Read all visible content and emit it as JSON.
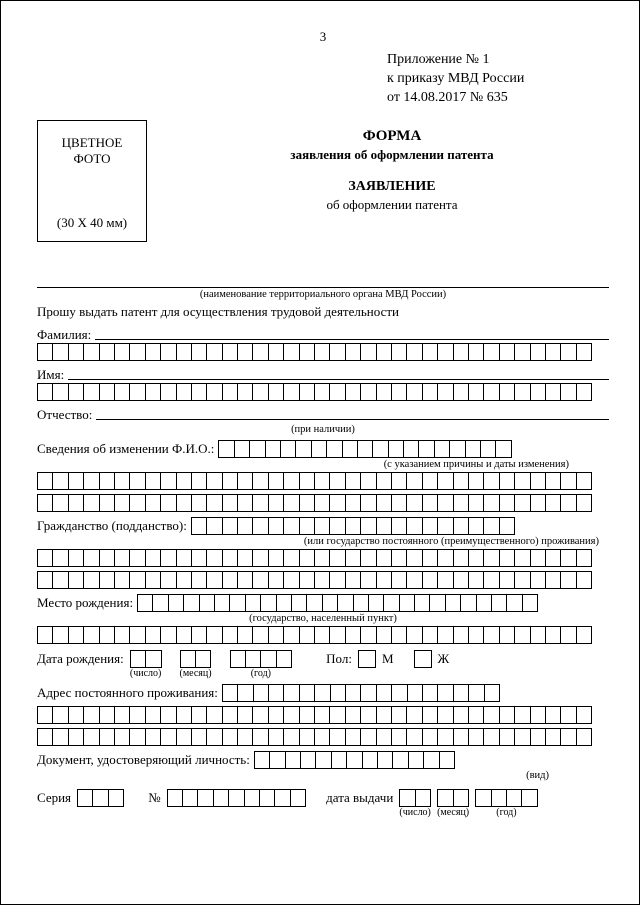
{
  "page_number": "3",
  "appendix": {
    "l1": "Приложение № 1",
    "l2": "к приказу МВД России",
    "l3": "от  14.08.2017   № 635"
  },
  "photo": {
    "l1": "ЦВЕТНОЕ",
    "l2": "ФОТО",
    "size": "(30 X 40 мм)"
  },
  "titles": {
    "form": "ФОРМА",
    "form_sub": "заявления об оформлении патента",
    "app": "ЗАЯВЛЕНИЕ",
    "app_sub": "об оформлении патента"
  },
  "auth_caption": "(наименование территориального органа МВД России)",
  "request": "Прошу выдать патент для осуществления трудовой деятельности",
  "labels": {
    "surname": "Фамилия:",
    "name": "Имя:",
    "patronymic": "Отчество:",
    "patronymic_cap": "(при наличии)",
    "fio_change": "Сведения об изменении Ф.И.О.:",
    "fio_change_cap": "(с указанием причины и даты изменения)",
    "citizenship": "Гражданство (подданство):",
    "citizenship_cap": "(или государство постоянного (преимущественного) проживания)",
    "birthplace": "Место рождения:",
    "birthplace_cap": "(государство, населенный пункт)",
    "dob": "Дата рождения:",
    "day": "(число)",
    "month": "(месяц)",
    "year": "(год)",
    "sex": "Пол:",
    "m": "М",
    "f": "Ж",
    "address": "Адрес постоянного проживания:",
    "doc": "Документ, удостоверяющий личность:",
    "doc_cap": "(вид)",
    "series": "Серия",
    "number": "№",
    "issue": "дата выдачи"
  },
  "style": {
    "cells_full": 36,
    "cells_fio": 19,
    "cells_cit": 21,
    "cells_bp": 26,
    "cells_addr": 18,
    "cells_doc": 13,
    "cells_series": 3,
    "cells_num": 9,
    "cells_day": 2,
    "cells_month": 2,
    "cells_year": 4,
    "border": "#000000",
    "bg": "#ffffff",
    "font": "Times New Roman"
  }
}
